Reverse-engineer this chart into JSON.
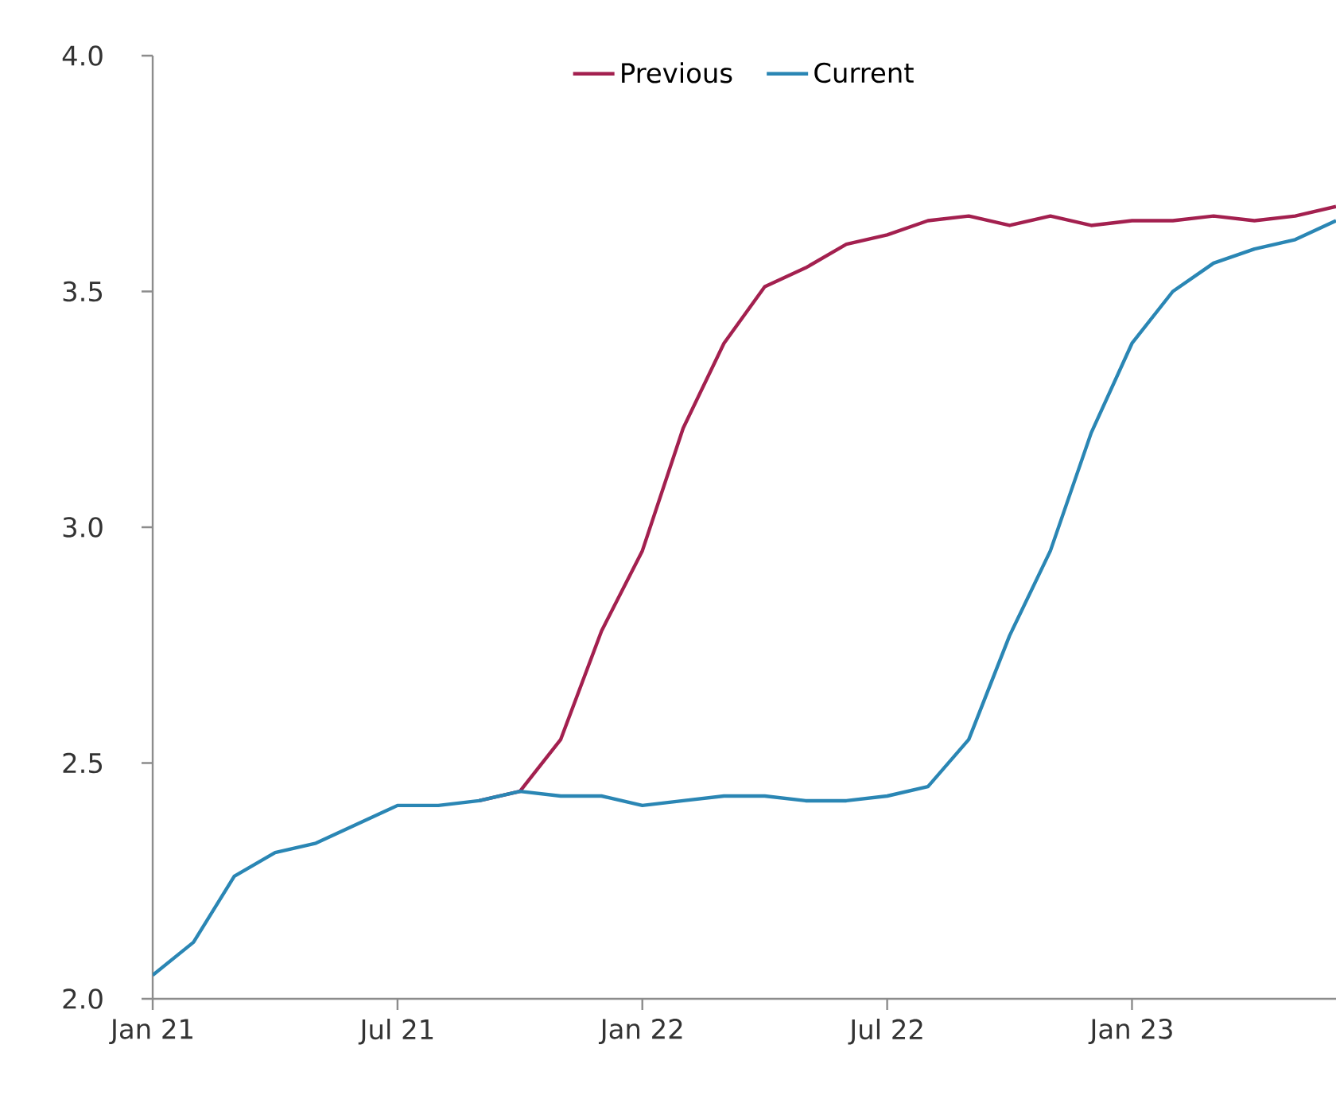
{
  "chart_data": {
    "type": "line",
    "x": [
      "2021-01",
      "2021-02",
      "2021-03",
      "2021-04",
      "2021-05",
      "2021-06",
      "2021-07",
      "2021-08",
      "2021-09",
      "2021-10",
      "2021-11",
      "2021-12",
      "2022-01",
      "2022-02",
      "2022-03",
      "2022-04",
      "2022-05",
      "2022-06",
      "2022-07",
      "2022-08",
      "2022-09",
      "2022-10",
      "2022-11",
      "2022-12",
      "2023-01",
      "2023-02",
      "2023-03",
      "2023-04",
      "2023-05",
      "2023-06"
    ],
    "series": [
      {
        "name": "Previous",
        "color": "#a3204f",
        "values": [
          null,
          null,
          null,
          null,
          null,
          null,
          null,
          null,
          2.42,
          2.44,
          2.55,
          2.78,
          2.95,
          3.21,
          3.39,
          3.51,
          3.55,
          3.6,
          3.62,
          3.65,
          3.66,
          3.64,
          3.66,
          3.64,
          3.65,
          3.65,
          3.66,
          3.65,
          3.66,
          3.68
        ]
      },
      {
        "name": "Current",
        "color": "#2a86b4",
        "values": [
          2.05,
          2.12,
          2.26,
          2.31,
          2.33,
          2.37,
          2.41,
          2.41,
          2.42,
          2.44,
          2.43,
          2.43,
          2.41,
          2.42,
          2.43,
          2.43,
          2.42,
          2.42,
          2.43,
          2.45,
          2.55,
          2.77,
          2.95,
          3.2,
          3.39,
          3.5,
          3.56,
          3.59,
          3.61,
          3.65
        ]
      }
    ],
    "xlim": [
      "2021-01",
      "2023-06"
    ],
    "xticks": [
      {
        "value": "2021-01",
        "label": "Jan 21"
      },
      {
        "value": "2021-07",
        "label": "Jul 21"
      },
      {
        "value": "2022-01",
        "label": "Jan 22"
      },
      {
        "value": "2022-07",
        "label": "Jul 22"
      },
      {
        "value": "2023-01",
        "label": "Jan 23"
      }
    ],
    "ylim": [
      2.0,
      4.0
    ],
    "yticks": [
      {
        "value": 2.0,
        "label": "2.0"
      },
      {
        "value": 2.5,
        "label": "2.5"
      },
      {
        "value": 3.0,
        "label": "3.0"
      },
      {
        "value": 3.5,
        "label": "3.5"
      },
      {
        "value": 4.0,
        "label": "4.0"
      }
    ],
    "legend": "top",
    "grid": false,
    "marker": "none",
    "line_style": "solid"
  }
}
